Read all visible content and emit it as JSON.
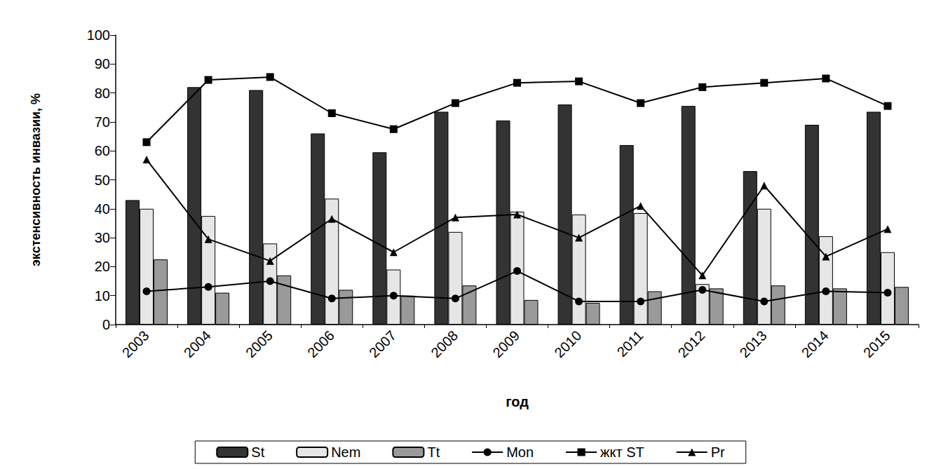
{
  "chart_data": {
    "type": "bar",
    "x_label": "год",
    "y_label": "экстенсивность инвазии, %",
    "categories": [
      "2003",
      "2004",
      "2005",
      "2006",
      "2007",
      "2008",
      "2009",
      "2010",
      "2011",
      "2012",
      "2013",
      "2014",
      "2015"
    ],
    "ylim": [
      0,
      100
    ],
    "yticks": [
      0,
      10,
      20,
      30,
      40,
      50,
      60,
      70,
      80,
      90,
      100
    ],
    "grid": false,
    "legend": "bottom",
    "series": [
      {
        "name": "St",
        "type": "bar",
        "color": "#333333",
        "values": [
          43,
          82,
          81,
          66,
          59.5,
          73.5,
          70.5,
          76,
          62,
          75.5,
          53,
          69,
          73.5
        ]
      },
      {
        "name": "Nem",
        "type": "bar",
        "color": "#e6e6e6",
        "values": [
          40,
          37.5,
          28,
          43.5,
          19,
          32,
          39,
          38,
          38.5,
          14,
          40,
          30.5,
          25
        ]
      },
      {
        "name": "Tt",
        "type": "bar",
        "color": "#9a9a9a",
        "values": [
          22.5,
          11,
          17,
          12,
          10,
          13.5,
          8.5,
          7.5,
          11.5,
          12.5,
          13.5,
          12.5,
          13
        ]
      },
      {
        "name": "Mon",
        "type": "line",
        "color": "#000000",
        "marker": "circle",
        "values": [
          11.5,
          13,
          15,
          9,
          10,
          9,
          18.5,
          8,
          8,
          12,
          8,
          11.5,
          11
        ]
      },
      {
        "name": "жкт ST",
        "type": "line",
        "color": "#000000",
        "marker": "square",
        "values": [
          63,
          84.5,
          85.5,
          73,
          67.5,
          76.5,
          83.5,
          84,
          76.5,
          82,
          83.5,
          85,
          75.5
        ]
      },
      {
        "name": "Pr",
        "type": "line",
        "color": "#000000",
        "marker": "triangle",
        "values": [
          57,
          29.5,
          22,
          36.5,
          25,
          37,
          38,
          30,
          41,
          17,
          48,
          23.5,
          33
        ]
      }
    ]
  }
}
